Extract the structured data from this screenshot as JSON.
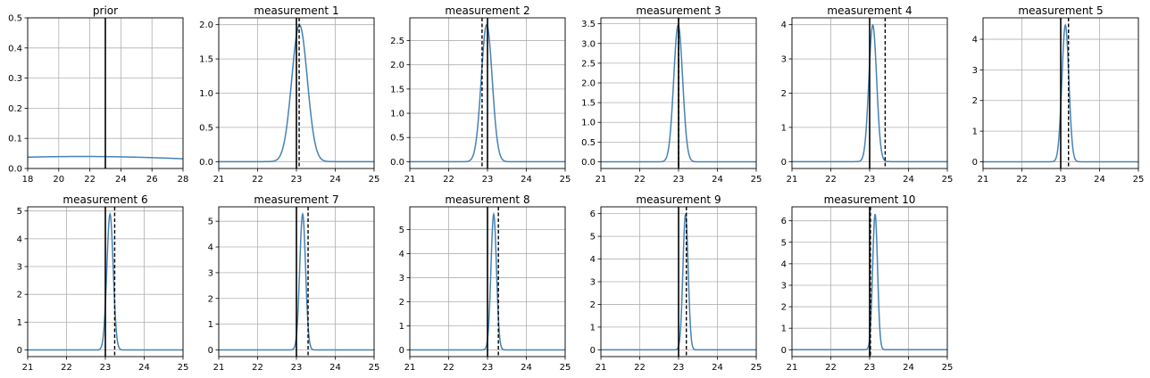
{
  "colors": {
    "curve": "#4682b4",
    "true_line": "#000000",
    "measurement_line": "#000000",
    "grid": "#b0b0b0",
    "axes": "#000000"
  },
  "chart_data": [
    {
      "type": "line",
      "title": "prior",
      "xlim": [
        18,
        28
      ],
      "ylim": [
        0,
        0.5
      ],
      "xticks": [
        18,
        20,
        22,
        24,
        26,
        28
      ],
      "yticks": [
        0.0,
        0.1,
        0.2,
        0.3,
        0.4,
        0.5
      ],
      "ytick_labels": [
        "0.0",
        "0.1",
        "0.2",
        "0.3",
        "0.4",
        "0.5"
      ],
      "grid": true,
      "curve": {
        "mean": 21.5,
        "std": 10.0
      },
      "true_value": 23.0,
      "measurement": null
    },
    {
      "type": "line",
      "title": "measurement 1",
      "xlim": [
        21,
        25
      ],
      "ylim": [
        -0.1,
        2.1
      ],
      "xticks": [
        21,
        22,
        23,
        24,
        25
      ],
      "yticks": [
        0.0,
        0.5,
        1.0,
        1.5,
        2.0
      ],
      "ytick_labels": [
        "0.0",
        "0.5",
        "1.0",
        "1.5",
        "2.0"
      ],
      "grid": true,
      "curve": {
        "mean": 23.08,
        "std": 0.2
      },
      "true_value": 23.0,
      "measurement": 23.07
    },
    {
      "type": "line",
      "title": "measurement 2",
      "xlim": [
        21,
        25
      ],
      "ylim": [
        -0.14,
        2.97
      ],
      "xticks": [
        21,
        22,
        23,
        24,
        25
      ],
      "yticks": [
        0.0,
        0.5,
        1.0,
        1.5,
        2.0,
        2.5
      ],
      "ytick_labels": [
        "0.0",
        "0.5",
        "1.0",
        "1.5",
        "2.0",
        "2.5"
      ],
      "grid": true,
      "curve": {
        "mean": 22.98,
        "std": 0.141
      },
      "true_value": 23.0,
      "measurement": 22.86
    },
    {
      "type": "line",
      "title": "measurement 3",
      "xlim": [
        21,
        25
      ],
      "ylim": [
        -0.17,
        3.65
      ],
      "xticks": [
        21,
        22,
        23,
        24,
        25
      ],
      "yticks": [
        0.0,
        0.5,
        1.0,
        1.5,
        2.0,
        2.5,
        3.0,
        3.5
      ],
      "ytick_labels": [
        "0.0",
        "0.5",
        "1.0",
        "1.5",
        "2.0",
        "2.5",
        "3.0",
        "3.5"
      ],
      "grid": true,
      "curve": {
        "mean": 22.99,
        "std": 0.115
      },
      "true_value": 23.0,
      "measurement": 23.0
    },
    {
      "type": "line",
      "title": "measurement 4",
      "xlim": [
        21,
        25
      ],
      "ylim": [
        -0.2,
        4.2
      ],
      "xticks": [
        21,
        22,
        23,
        24,
        25
      ],
      "yticks": [
        0,
        1,
        2,
        3,
        4
      ],
      "ytick_labels": [
        "0",
        "1",
        "2",
        "3",
        "4"
      ],
      "grid": true,
      "curve": {
        "mean": 23.08,
        "std": 0.1
      },
      "true_value": 23.0,
      "measurement": 23.4
    },
    {
      "type": "line",
      "title": "measurement 5",
      "xlim": [
        21,
        25
      ],
      "ylim": [
        -0.22,
        4.7
      ],
      "xticks": [
        21,
        22,
        23,
        24,
        25
      ],
      "yticks": [
        0,
        1,
        2,
        3,
        4
      ],
      "ytick_labels": [
        "0",
        "1",
        "2",
        "3",
        "4"
      ],
      "grid": true,
      "curve": {
        "mean": 23.12,
        "std": 0.0894
      },
      "true_value": 23.0,
      "measurement": 23.2
    },
    {
      "type": "line",
      "title": "measurement 6",
      "xlim": [
        21,
        25
      ],
      "ylim": [
        -0.24,
        5.15
      ],
      "xticks": [
        21,
        22,
        23,
        24,
        25
      ],
      "yticks": [
        0,
        1,
        2,
        3,
        4,
        5
      ],
      "ytick_labels": [
        "0",
        "1",
        "2",
        "3",
        "4",
        "5"
      ],
      "grid": true,
      "curve": {
        "mean": 23.12,
        "std": 0.0816
      },
      "true_value": 23.0,
      "measurement": 23.24
    },
    {
      "type": "line",
      "title": "measurement 7",
      "xlim": [
        21,
        25
      ],
      "ylim": [
        -0.26,
        5.56
      ],
      "xticks": [
        21,
        22,
        23,
        24,
        25
      ],
      "yticks": [
        0,
        1,
        2,
        3,
        4,
        5
      ],
      "ytick_labels": [
        "0",
        "1",
        "2",
        "3",
        "4",
        "5"
      ],
      "grid": true,
      "curve": {
        "mean": 23.16,
        "std": 0.0756
      },
      "true_value": 23.0,
      "measurement": 23.3
    },
    {
      "type": "line",
      "title": "measurement 8",
      "xlim": [
        21,
        25
      ],
      "ylim": [
        -0.28,
        5.95
      ],
      "xticks": [
        21,
        22,
        23,
        24,
        25
      ],
      "yticks": [
        0,
        1,
        2,
        3,
        4,
        5
      ],
      "ytick_labels": [
        "0",
        "1",
        "2",
        "3",
        "4",
        "5"
      ],
      "grid": true,
      "curve": {
        "mean": 23.16,
        "std": 0.0707
      },
      "true_value": 23.0,
      "measurement": 23.28
    },
    {
      "type": "line",
      "title": "measurement 9",
      "xlim": [
        21,
        25
      ],
      "ylim": [
        -0.3,
        6.3
      ],
      "xticks": [
        21,
        22,
        23,
        24,
        25
      ],
      "yticks": [
        0,
        1,
        2,
        3,
        4,
        5,
        6
      ],
      "ytick_labels": [
        "0",
        "1",
        "2",
        "3",
        "4",
        "5",
        "6"
      ],
      "grid": true,
      "curve": {
        "mean": 23.18,
        "std": 0.0667
      },
      "true_value": 23.0,
      "measurement": 23.2
    },
    {
      "type": "line",
      "title": "measurement 10",
      "xlim": [
        21,
        25
      ],
      "ylim": [
        -0.32,
        6.65
      ],
      "xticks": [
        21,
        22,
        23,
        24,
        25
      ],
      "yticks": [
        0,
        1,
        2,
        3,
        4,
        5,
        6
      ],
      "ytick_labels": [
        "0",
        "1",
        "2",
        "3",
        "4",
        "5",
        "6"
      ],
      "grid": true,
      "curve": {
        "mean": 23.14,
        "std": 0.0632
      },
      "true_value": 23.0,
      "measurement": 23.02
    }
  ]
}
